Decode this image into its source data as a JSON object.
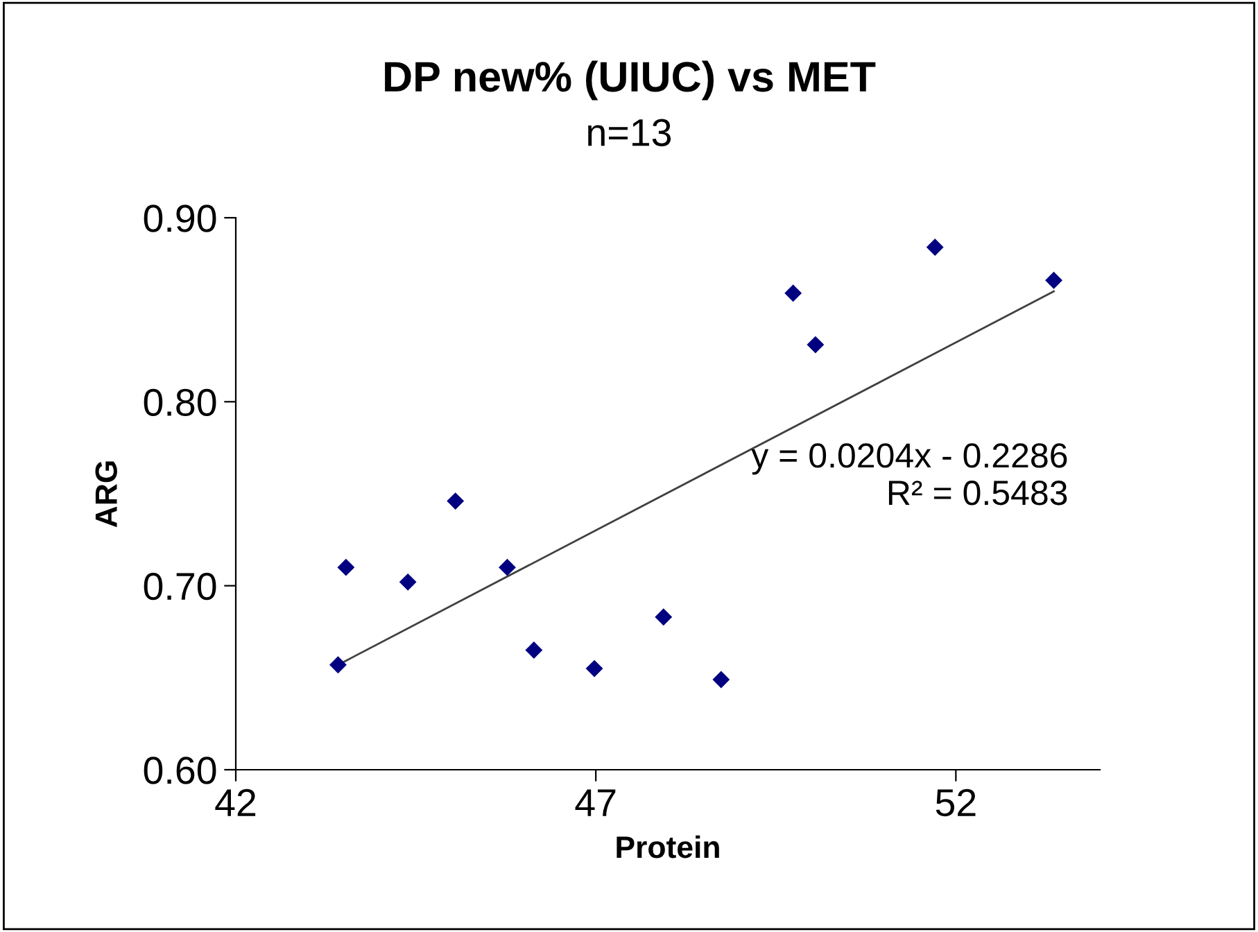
{
  "chart_data": {
    "type": "scatter",
    "title": "DP new% (UIUC) vs MET",
    "subtitle": "n=13",
    "xlabel": "Protein",
    "ylabel": "ARG",
    "series": [
      {
        "color": "#000080",
        "marker": "diamond",
        "x": [
          43.42,
          43.53,
          44.39,
          45.05,
          45.77,
          46.14,
          46.98,
          47.94,
          48.74,
          49.74,
          50.05,
          51.71,
          53.36
        ],
        "values": [
          0.657,
          0.71,
          0.702,
          0.746,
          0.71,
          0.665,
          0.655,
          0.683,
          0.649,
          0.859,
          0.831,
          0.884,
          0.866
        ]
      },
      {
        "type": "line",
        "color": "#404040",
        "marker": "none",
        "line_style": "solid",
        "x": [
          43.42,
          53.36
        ],
        "values": [
          0.657,
          0.86
        ]
      }
    ],
    "annotations": [
      "y = 0.0204x - 0.2286\nR² = 0.5483"
    ],
    "xlim": [
      42,
      54
    ],
    "xticks": [
      42,
      47,
      52
    ],
    "ylim": [
      0.6,
      0.9
    ],
    "yticks": [
      {
        "value": 0.6,
        "label": "0.60"
      },
      {
        "value": 0.7,
        "label": "0.70"
      },
      {
        "value": 0.8,
        "label": "0.80"
      },
      {
        "value": 0.9,
        "label": "0.90"
      }
    ],
    "grid": false,
    "legend": false
  }
}
